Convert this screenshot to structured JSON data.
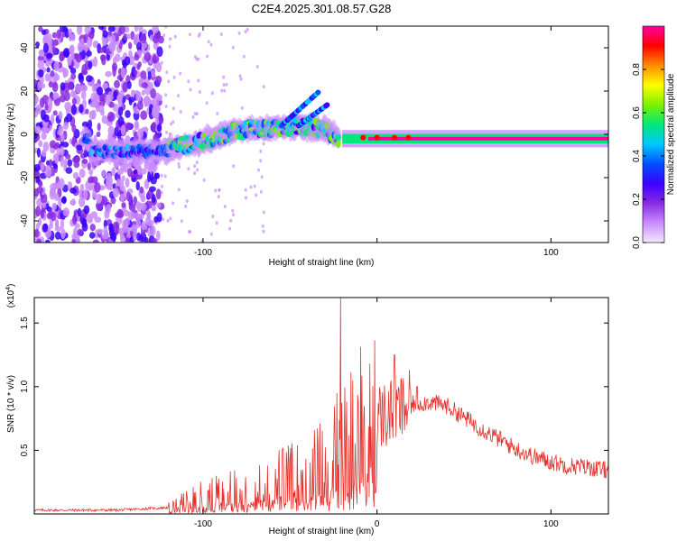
{
  "title": "C2E4.2025.301.08.57.G28",
  "chart_data": [
    {
      "type": "heatmap",
      "panel": "spectrogram",
      "xlabel": "Height of straight line (km)",
      "ylabel": "Frequency (Hz)",
      "xlim": [
        -197,
        133
      ],
      "ylim": [
        -50,
        50
      ],
      "xticks": [
        -100,
        0,
        100
      ],
      "xtick_labels": [
        "-100",
        "",
        "100"
      ],
      "yticks": [
        -40,
        -20,
        0,
        20,
        40
      ],
      "ytick_labels": [
        "-40",
        "-20",
        "0",
        "20",
        "40"
      ],
      "colorbar": {
        "label": "Normalized spectral amplitude",
        "range": [
          0,
          1
        ],
        "ticks": [
          0.0,
          0.2,
          0.4,
          0.6,
          0.8
        ],
        "tick_labels": [
          "0.0",
          "0.2",
          "0.4",
          "0.6",
          "0.8"
        ],
        "colors": [
          "#f4e8ff",
          "#c88cff",
          "#8a2be2",
          "#3b00ff",
          "#0050ff",
          "#00c8ff",
          "#00e878",
          "#7cf000",
          "#ffff00",
          "#ff8c00",
          "#ff0000",
          "#ff00a0"
        ]
      },
      "features": {
        "noise_region_km": [
          -197,
          -124
        ],
        "signal_track": [
          {
            "km": -165,
            "hz": -8
          },
          {
            "km": -125,
            "hz": -8
          },
          {
            "km": -100,
            "hz": -3
          },
          {
            "km": -80,
            "hz": 2
          },
          {
            "km": -60,
            "hz": 3
          },
          {
            "km": -45,
            "hz": 4
          },
          {
            "km": -30,
            "hz": 2
          },
          {
            "km": -20,
            "hz": -2
          },
          {
            "km": 0,
            "hz": 0
          },
          {
            "km": 40,
            "hz": -1
          },
          {
            "km": 133,
            "hz": -2
          }
        ],
        "upper_branches": [
          {
            "from_km": -55,
            "from_hz": 4,
            "to_km": -33,
            "to_hz": 20
          },
          {
            "from_km": -45,
            "from_hz": 4,
            "to_km": -28,
            "to_hz": 14
          }
        ],
        "dominant_line": {
          "from_km": -20,
          "to_km": 133,
          "hz": -2,
          "amplitude": 1.0
        }
      }
    },
    {
      "type": "line",
      "panel": "snr",
      "xlabel": "Height of straight line (km)",
      "ylabel": "SNR (10 * v/v)",
      "multiplier_label": "(x10",
      "multiplier_exp": "4",
      "multiplier_close": ")",
      "xlim": [
        -197,
        133
      ],
      "ylim": [
        0,
        1.7
      ],
      "xticks": [
        -100,
        0,
        100
      ],
      "xtick_labels": [
        "-100",
        "0",
        "100"
      ],
      "yticks": [
        0.5,
        1.0,
        1.5
      ],
      "ytick_labels": [
        "0.5",
        "1.0",
        "1.5"
      ],
      "color": "#e8302b",
      "envelope": [
        {
          "x": -197,
          "y": 0.03
        },
        {
          "x": -150,
          "y": 0.03
        },
        {
          "x": -120,
          "y": 0.05
        },
        {
          "x": -100,
          "y": 0.14
        },
        {
          "x": -80,
          "y": 0.2
        },
        {
          "x": -60,
          "y": 0.26
        },
        {
          "x": -40,
          "y": 0.33
        },
        {
          "x": -30,
          "y": 0.42
        },
        {
          "x": -20,
          "y": 0.55
        },
        {
          "x": -10,
          "y": 0.74
        },
        {
          "x": 0,
          "y": 0.76
        },
        {
          "x": 10,
          "y": 0.8
        },
        {
          "x": 20,
          "y": 0.86
        },
        {
          "x": 30,
          "y": 0.88
        },
        {
          "x": 40,
          "y": 0.85
        },
        {
          "x": 50,
          "y": 0.76
        },
        {
          "x": 60,
          "y": 0.67
        },
        {
          "x": 70,
          "y": 0.59
        },
        {
          "x": 80,
          "y": 0.51
        },
        {
          "x": 90,
          "y": 0.45
        },
        {
          "x": 100,
          "y": 0.41
        },
        {
          "x": 110,
          "y": 0.38
        },
        {
          "x": 120,
          "y": 0.37
        },
        {
          "x": 133,
          "y": 0.34
        }
      ],
      "peaks": [
        {
          "x": -21,
          "y": 1.7
        },
        {
          "x": 10,
          "y": 1.25
        },
        {
          "x": -14,
          "y": 1.05
        },
        {
          "x": 23,
          "y": 1.0
        }
      ]
    }
  ]
}
